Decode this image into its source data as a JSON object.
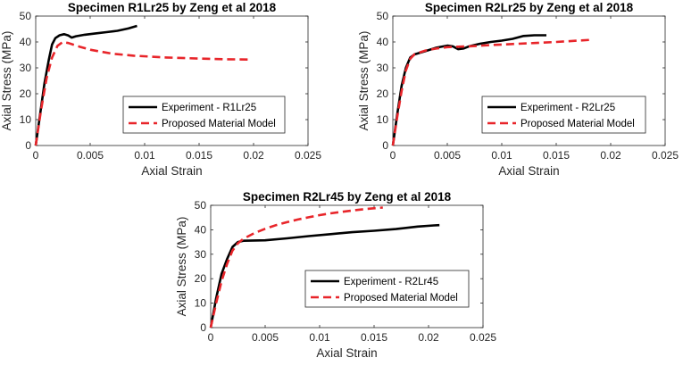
{
  "chart_data": [
    {
      "type": "line",
      "title": "Specimen R1Lr25  by Zeng et al 2018",
      "xlabel": "Axial Strain",
      "ylabel": "Axial Stress (MPa)",
      "xlim": [
        0,
        0.025
      ],
      "ylim": [
        0,
        50
      ],
      "xticks": [
        0,
        0.005,
        0.01,
        0.015,
        0.02,
        0.025
      ],
      "xtick_labels": [
        "0",
        "0.005",
        "0.01",
        "0.015",
        "0.02",
        "0.025"
      ],
      "yticks": [
        0,
        10,
        20,
        30,
        40,
        50
      ],
      "ytick_labels": [
        "0",
        "10",
        "20",
        "30",
        "40",
        "50"
      ],
      "legend_position": "lower-right",
      "series": [
        {
          "name": "Experiment - R1Lr25",
          "color": "#000000",
          "style": "solid",
          "points": [
            [
              0,
              0
            ],
            [
              0.0004,
              12
            ],
            [
              0.0008,
              24
            ],
            [
              0.0012,
              33
            ],
            [
              0.0015,
              39
            ],
            [
              0.0018,
              41.5
            ],
            [
              0.0022,
              42.6
            ],
            [
              0.0026,
              43
            ],
            [
              0.003,
              42.5
            ],
            [
              0.0033,
              41.7
            ],
            [
              0.0037,
              42.2
            ],
            [
              0.0045,
              42.8
            ],
            [
              0.0055,
              43.3
            ],
            [
              0.0065,
              43.8
            ],
            [
              0.0075,
              44.3
            ],
            [
              0.0085,
              45.2
            ],
            [
              0.0093,
              46.2
            ]
          ]
        },
        {
          "name": "Proposed Material Model",
          "color": "#e8252a",
          "style": "dashed",
          "points": [
            [
              0,
              0
            ],
            [
              0.0005,
              14
            ],
            [
              0.001,
              26
            ],
            [
              0.0015,
              34
            ],
            [
              0.002,
              38.5
            ],
            [
              0.0025,
              40
            ],
            [
              0.003,
              39.6
            ],
            [
              0.004,
              38.2
            ],
            [
              0.005,
              37
            ],
            [
              0.007,
              35.5
            ],
            [
              0.009,
              34.7
            ],
            [
              0.012,
              34
            ],
            [
              0.015,
              33.6
            ],
            [
              0.0175,
              33.3
            ],
            [
              0.0197,
              33.2
            ]
          ]
        }
      ]
    },
    {
      "type": "line",
      "title": "Specimen R2Lr25  by Zeng et al 2018",
      "xlabel": "Axial Strain",
      "ylabel": "Axial Stress (MPa)",
      "xlim": [
        0,
        0.025
      ],
      "ylim": [
        0,
        50
      ],
      "xticks": [
        0,
        0.005,
        0.01,
        0.015,
        0.02,
        0.025
      ],
      "xtick_labels": [
        "0",
        "0.005",
        "0.01",
        "0.015",
        "0.02",
        "0.025"
      ],
      "yticks": [
        0,
        10,
        20,
        30,
        40,
        50
      ],
      "ytick_labels": [
        "0",
        "10",
        "20",
        "30",
        "40",
        "50"
      ],
      "legend_position": "lower-right",
      "series": [
        {
          "name": "Experiment - R2Lr25",
          "color": "#000000",
          "style": "solid",
          "points": [
            [
              0,
              0
            ],
            [
              0.0004,
              12
            ],
            [
              0.0008,
              23
            ],
            [
              0.0012,
              30
            ],
            [
              0.0016,
              34
            ],
            [
              0.002,
              35.2
            ],
            [
              0.003,
              36.5
            ],
            [
              0.004,
              37.8
            ],
            [
              0.005,
              38.6
            ],
            [
              0.0055,
              38.3
            ],
            [
              0.006,
              37.2
            ],
            [
              0.0065,
              37.5
            ],
            [
              0.007,
              38.3
            ],
            [
              0.008,
              39.3
            ],
            [
              0.009,
              40
            ],
            [
              0.01,
              40.5
            ],
            [
              0.011,
              41.2
            ],
            [
              0.012,
              42.3
            ],
            [
              0.013,
              42.6
            ],
            [
              0.0141,
              42.6
            ]
          ]
        },
        {
          "name": "Proposed Material Model",
          "color": "#e8252a",
          "style": "dashed",
          "points": [
            [
              0,
              0
            ],
            [
              0.0004,
              11
            ],
            [
              0.0008,
              21
            ],
            [
              0.0012,
              29
            ],
            [
              0.0016,
              33.5
            ],
            [
              0.002,
              35.3
            ],
            [
              0.003,
              36.7
            ],
            [
              0.004,
              37.5
            ],
            [
              0.005,
              38
            ],
            [
              0.007,
              38.3
            ],
            [
              0.009,
              38.8
            ],
            [
              0.011,
              39.2
            ],
            [
              0.013,
              39.6
            ],
            [
              0.015,
              40
            ],
            [
              0.017,
              40.5
            ],
            [
              0.0181,
              40.8
            ]
          ]
        }
      ]
    },
    {
      "type": "line",
      "title": "Specimen R2Lr45  by Zeng et al 2018",
      "xlabel": "Axial Strain",
      "ylabel": "Axial Stress (MPa)",
      "xlim": [
        0,
        0.025
      ],
      "ylim": [
        0,
        50
      ],
      "xticks": [
        0,
        0.005,
        0.01,
        0.015,
        0.02,
        0.025
      ],
      "xtick_labels": [
        "0",
        "0.005",
        "0.01",
        "0.015",
        "0.02",
        "0.025"
      ],
      "yticks": [
        0,
        10,
        20,
        30,
        40,
        50
      ],
      "ytick_labels": [
        "0",
        "10",
        "20",
        "30",
        "40",
        "50"
      ],
      "legend_position": "lower-right",
      "series": [
        {
          "name": "Experiment - R2Lr45",
          "color": "#000000",
          "style": "solid",
          "points": [
            [
              0,
              0
            ],
            [
              0.0005,
              12
            ],
            [
              0.001,
              22
            ],
            [
              0.0015,
              28
            ],
            [
              0.002,
              33
            ],
            [
              0.0025,
              35
            ],
            [
              0.003,
              35.5
            ],
            [
              0.005,
              35.7
            ],
            [
              0.007,
              36.5
            ],
            [
              0.009,
              37.4
            ],
            [
              0.011,
              38.2
            ],
            [
              0.013,
              39
            ],
            [
              0.015,
              39.6
            ],
            [
              0.017,
              40.3
            ],
            [
              0.019,
              41.3
            ],
            [
              0.0205,
              41.8
            ],
            [
              0.021,
              41.9
            ]
          ]
        },
        {
          "name": "Proposed Material Model",
          "color": "#e8252a",
          "style": "dashed",
          "points": [
            [
              0,
              0
            ],
            [
              0.0005,
              10
            ],
            [
              0.001,
              19
            ],
            [
              0.0015,
              26
            ],
            [
              0.002,
              31.5
            ],
            [
              0.0025,
              34.5
            ],
            [
              0.003,
              36.3
            ],
            [
              0.004,
              38.6
            ],
            [
              0.005,
              40.4
            ],
            [
              0.006,
              41.9
            ],
            [
              0.007,
              43.1
            ],
            [
              0.008,
              44.2
            ],
            [
              0.009,
              45.1
            ],
            [
              0.01,
              46
            ],
            [
              0.011,
              46.7
            ],
            [
              0.012,
              47.3
            ],
            [
              0.013,
              47.9
            ],
            [
              0.014,
              48.4
            ],
            [
              0.015,
              48.8
            ],
            [
              0.0158,
              49.1
            ]
          ]
        }
      ]
    }
  ]
}
